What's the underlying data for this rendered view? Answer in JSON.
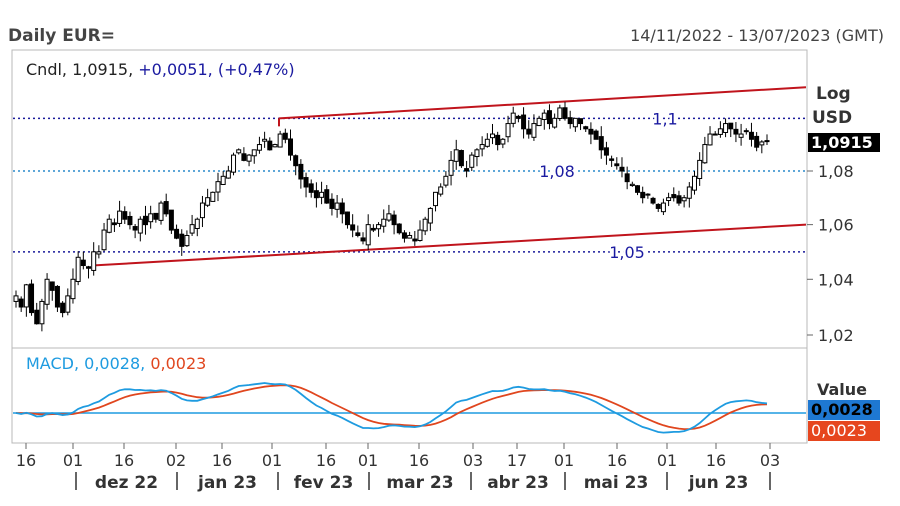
{
  "header": {
    "title": "Daily EUR=",
    "date_range": "14/11/2022 - 13/07/2023 (GMT)"
  },
  "price_legend": {
    "series": "Cndl,",
    "last": "1,0915,",
    "change": "+0,0051,",
    "change_pct": "(+0,47%)"
  },
  "macd_legend": {
    "name": "MACD,",
    "macd": "0,0028,",
    "signal": "0,0023"
  },
  "axis_labels": {
    "scale": "Log",
    "currency": "USD",
    "value": "Value"
  },
  "badges": {
    "price": "1,0915",
    "macd": "0,0028",
    "signal": "0,0023"
  },
  "colors": {
    "candle": "#000000",
    "channel": "#c0141c",
    "level": "#1a1a9a",
    "level_label": "#1a1aa0",
    "macd": "#1e9be0",
    "signal": "#e0461e",
    "badge_price_bg": "#000000",
    "badge_macd_bg": "#1e78d2",
    "badge_signal_bg": "#e6461e",
    "change_text": "#1a1aa0"
  },
  "chart_data": [
    {
      "type": "candlestick",
      "y_scale": "log",
      "y_ticks": [
        "1,02",
        "1,04",
        "1,06",
        "1,08"
      ],
      "ylim": [
        1.02,
        1.117
      ],
      "x_ticks": [
        "16",
        "01",
        "16",
        "02",
        "16",
        "01",
        "16",
        "01",
        "16",
        "03",
        "17",
        "01",
        "16",
        "01",
        "16",
        "03"
      ],
      "month_labels": [
        "dez 22",
        "jan 23",
        "fev 23",
        "mar 23",
        "abr 23",
        "mai 23",
        "jun 23"
      ],
      "horizontal_levels": [
        {
          "value": 1.1,
          "label": "1,1"
        },
        {
          "value": 1.08,
          "label": "1,08"
        },
        {
          "value": 1.05,
          "label": "1,05"
        }
      ],
      "trend_channel": {
        "upper": [
          [
            1.1,
            1.112
          ]
        ],
        "lower": [
          [
            1.045,
            1.06
          ]
        ]
      },
      "close_path": [
        1.034,
        1.03,
        1.038,
        1.028,
        1.024,
        1.032,
        1.04,
        1.036,
        1.03,
        1.028,
        1.034,
        1.04,
        1.048,
        1.045,
        1.044,
        1.05,
        1.05,
        1.058,
        1.062,
        1.06,
        1.065,
        1.062,
        1.06,
        1.058,
        1.062,
        1.06,
        1.064,
        1.062,
        1.068,
        1.064,
        1.058,
        1.055,
        1.052,
        1.056,
        1.06,
        1.062,
        1.068,
        1.07,
        1.072,
        1.076,
        1.078,
        1.08,
        1.086,
        1.088,
        1.084,
        1.086,
        1.088,
        1.09,
        1.092,
        1.088,
        1.09,
        1.094,
        1.092,
        1.086,
        1.082,
        1.077,
        1.074,
        1.072,
        1.07,
        1.072,
        1.068,
        1.066,
        1.068,
        1.064,
        1.06,
        1.058,
        1.056,
        1.054,
        1.06,
        1.058,
        1.06,
        1.062,
        1.064,
        1.06,
        1.057,
        1.055,
        1.056,
        1.054,
        1.058,
        1.062,
        1.066,
        1.072,
        1.074,
        1.078,
        1.084,
        1.088,
        1.082,
        1.08,
        1.086,
        1.088,
        1.09,
        1.092,
        1.094,
        1.09,
        1.092,
        1.098,
        1.102,
        1.1,
        1.096,
        1.094,
        1.098,
        1.1,
        1.102,
        1.098,
        1.1,
        1.104,
        1.1,
        1.098,
        1.1,
        1.098,
        1.096,
        1.094,
        1.092,
        1.088,
        1.086,
        1.084,
        1.082,
        1.08,
        1.076,
        1.075,
        1.072,
        1.07,
        1.071,
        1.068,
        1.066,
        1.068,
        1.07,
        1.07,
        1.068,
        1.07,
        1.074,
        1.078,
        1.084,
        1.09,
        1.094,
        1.094,
        1.096,
        1.098,
        1.096,
        1.094,
        1.094,
        1.095,
        1.092,
        1.089,
        1.091,
        1.0915
      ]
    },
    {
      "type": "line",
      "title": "MACD",
      "series": [
        {
          "name": "MACD",
          "last": 0.0028
        },
        {
          "name": "Signal",
          "last": 0.0023
        }
      ]
    }
  ]
}
